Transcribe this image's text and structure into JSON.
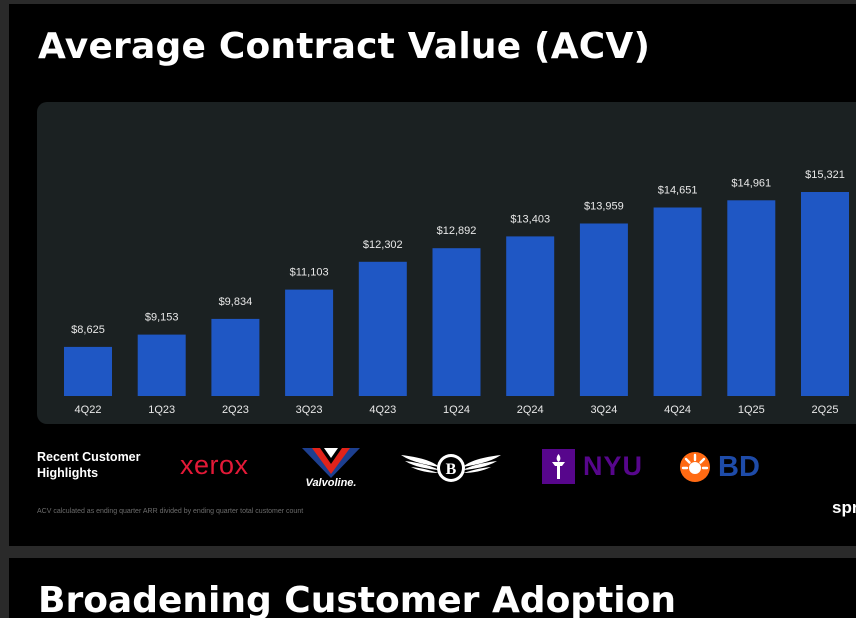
{
  "slide": {
    "title": "Average Contract Value (ACV)",
    "highlights_label": "Recent Customer Highlights",
    "footnote": "ACV calculated as ending quarter ARR divided by ending quarter total customer count",
    "brand_partial": "spr"
  },
  "logos": {
    "xerox": "xerox",
    "valvoline": "Valvoline.",
    "bentley": "B",
    "nyu": "NYU",
    "bd": "BD"
  },
  "next_slide": {
    "title_partial": "Broadening Customer Adoption"
  },
  "colors": {
    "bar": "#1f57c4",
    "panel": "#1b2122",
    "background": "#000000",
    "xerox": "#e31937",
    "valvoline_blue": "#1d3f8f",
    "valvoline_red": "#e2231a",
    "nyu": "#57068c",
    "bd_orange": "#ff6a13",
    "bd_blue": "#1e4ba8"
  },
  "chart_data": {
    "type": "bar",
    "categories": [
      "4Q22",
      "1Q23",
      "2Q23",
      "3Q23",
      "4Q23",
      "1Q24",
      "2Q24",
      "3Q24",
      "4Q24",
      "1Q25",
      "2Q25"
    ],
    "values": [
      8625,
      9153,
      9834,
      11103,
      12302,
      12892,
      13403,
      13959,
      14651,
      14961,
      15321
    ],
    "value_labels": [
      "$8,625",
      "$9,153",
      "$9,834",
      "$11,103",
      "$12,302",
      "$12,892",
      "$13,403",
      "$13,959",
      "$14,651",
      "$14,961",
      "$15,321"
    ],
    "xlabel": "",
    "ylabel": "",
    "ylim": [
      6500,
      16100
    ],
    "grid": false
  }
}
